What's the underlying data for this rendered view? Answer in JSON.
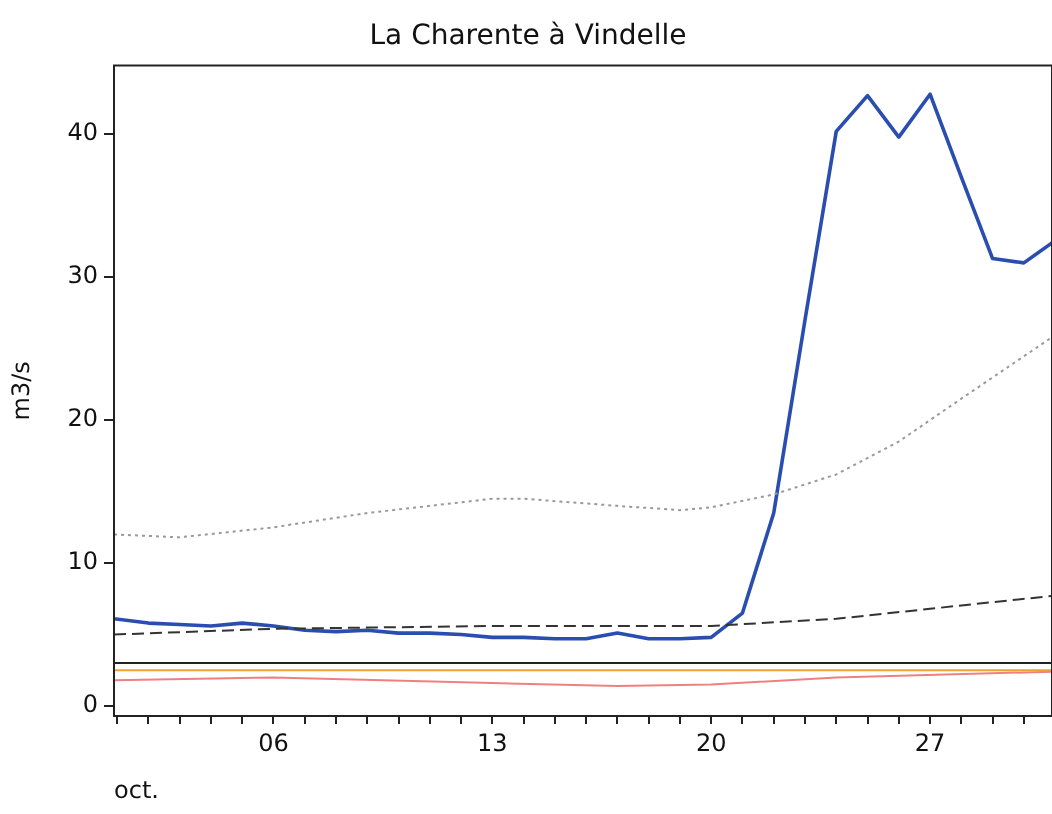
{
  "chart_data": {
    "type": "line",
    "title": "La Charente à Vindelle",
    "xlabel": "oct.",
    "ylabel": "m3/s",
    "xlim": [
      0.9,
      30.9
    ],
    "ylim": [
      -0.7,
      44.8
    ],
    "xticks": [
      {
        "value": 1,
        "label": null
      },
      {
        "value": 2,
        "label": null
      },
      {
        "value": 3,
        "label": null
      },
      {
        "value": 4,
        "label": null
      },
      {
        "value": 5,
        "label": null
      },
      {
        "value": 6,
        "label": "06"
      },
      {
        "value": 7,
        "label": null
      },
      {
        "value": 8,
        "label": null
      },
      {
        "value": 9,
        "label": null
      },
      {
        "value": 10,
        "label": null
      },
      {
        "value": 11,
        "label": null
      },
      {
        "value": 12,
        "label": null
      },
      {
        "value": 13,
        "label": "13"
      },
      {
        "value": 14,
        "label": null
      },
      {
        "value": 15,
        "label": null
      },
      {
        "value": 16,
        "label": null
      },
      {
        "value": 17,
        "label": null
      },
      {
        "value": 18,
        "label": null
      },
      {
        "value": 19,
        "label": null
      },
      {
        "value": 20,
        "label": "20"
      },
      {
        "value": 21,
        "label": null
      },
      {
        "value": 22,
        "label": null
      },
      {
        "value": 23,
        "label": null
      },
      {
        "value": 24,
        "label": null
      },
      {
        "value": 25,
        "label": null
      },
      {
        "value": 26,
        "label": null
      },
      {
        "value": 27,
        "label": "27"
      },
      {
        "value": 28,
        "label": null
      },
      {
        "value": 29,
        "label": null
      },
      {
        "value": 30,
        "label": null
      }
    ],
    "yticks": [
      0,
      10,
      20,
      30,
      40
    ],
    "grid": false,
    "legend": false,
    "marker": "none",
    "series": [
      {
        "color": "#999999",
        "line_style": "dotted",
        "x": [
          0.9,
          3,
          6,
          9,
          13,
          14,
          17,
          19,
          20,
          22,
          24,
          26,
          28,
          30.9
        ],
        "values": [
          12,
          11.8,
          12.5,
          13.5,
          14.5,
          14.5,
          14,
          13.7,
          13.9,
          14.8,
          16.2,
          18.5,
          21.5,
          25.8
        ]
      },
      {
        "color": "#333333",
        "line_style": "dashed",
        "x": [
          0.9,
          6,
          13,
          20,
          24,
          27,
          30.9
        ],
        "values": [
          5,
          5.4,
          5.6,
          5.6,
          6.1,
          6.8,
          7.7
        ]
      },
      {
        "color": "#222222",
        "line_style": "solid",
        "x": [
          0.9,
          30.9
        ],
        "values": [
          3,
          3
        ]
      },
      {
        "color": "#f0a030",
        "line_style": "solid",
        "x": [
          0.9,
          30.9
        ],
        "values": [
          2.5,
          2.5
        ]
      },
      {
        "color": "#f08080",
        "line_style": "solid",
        "x": [
          0.9,
          6,
          13,
          17,
          20,
          24,
          30.9
        ],
        "values": [
          1.8,
          2,
          1.6,
          1.4,
          1.5,
          2,
          2.4
        ]
      },
      {
        "color": "#2a4db0",
        "line_style": "solid",
        "x": [
          0.9,
          2,
          3,
          4,
          5,
          6,
          7,
          8,
          9,
          10,
          11,
          12,
          13,
          14,
          15,
          16,
          17,
          18,
          19,
          20,
          21,
          22,
          23,
          24,
          25,
          26,
          27,
          28,
          29,
          30,
          30.9
        ],
        "values": [
          6.1,
          5.8,
          5.7,
          5.6,
          5.8,
          5.6,
          5.3,
          5.2,
          5.3,
          5.1,
          5.1,
          5,
          4.8,
          4.8,
          4.7,
          4.7,
          5.1,
          4.7,
          4.7,
          4.8,
          6.5,
          13.5,
          27,
          40.2,
          42.7,
          39.8,
          42.8,
          37,
          31.3,
          31,
          32.4
        ]
      }
    ]
  }
}
